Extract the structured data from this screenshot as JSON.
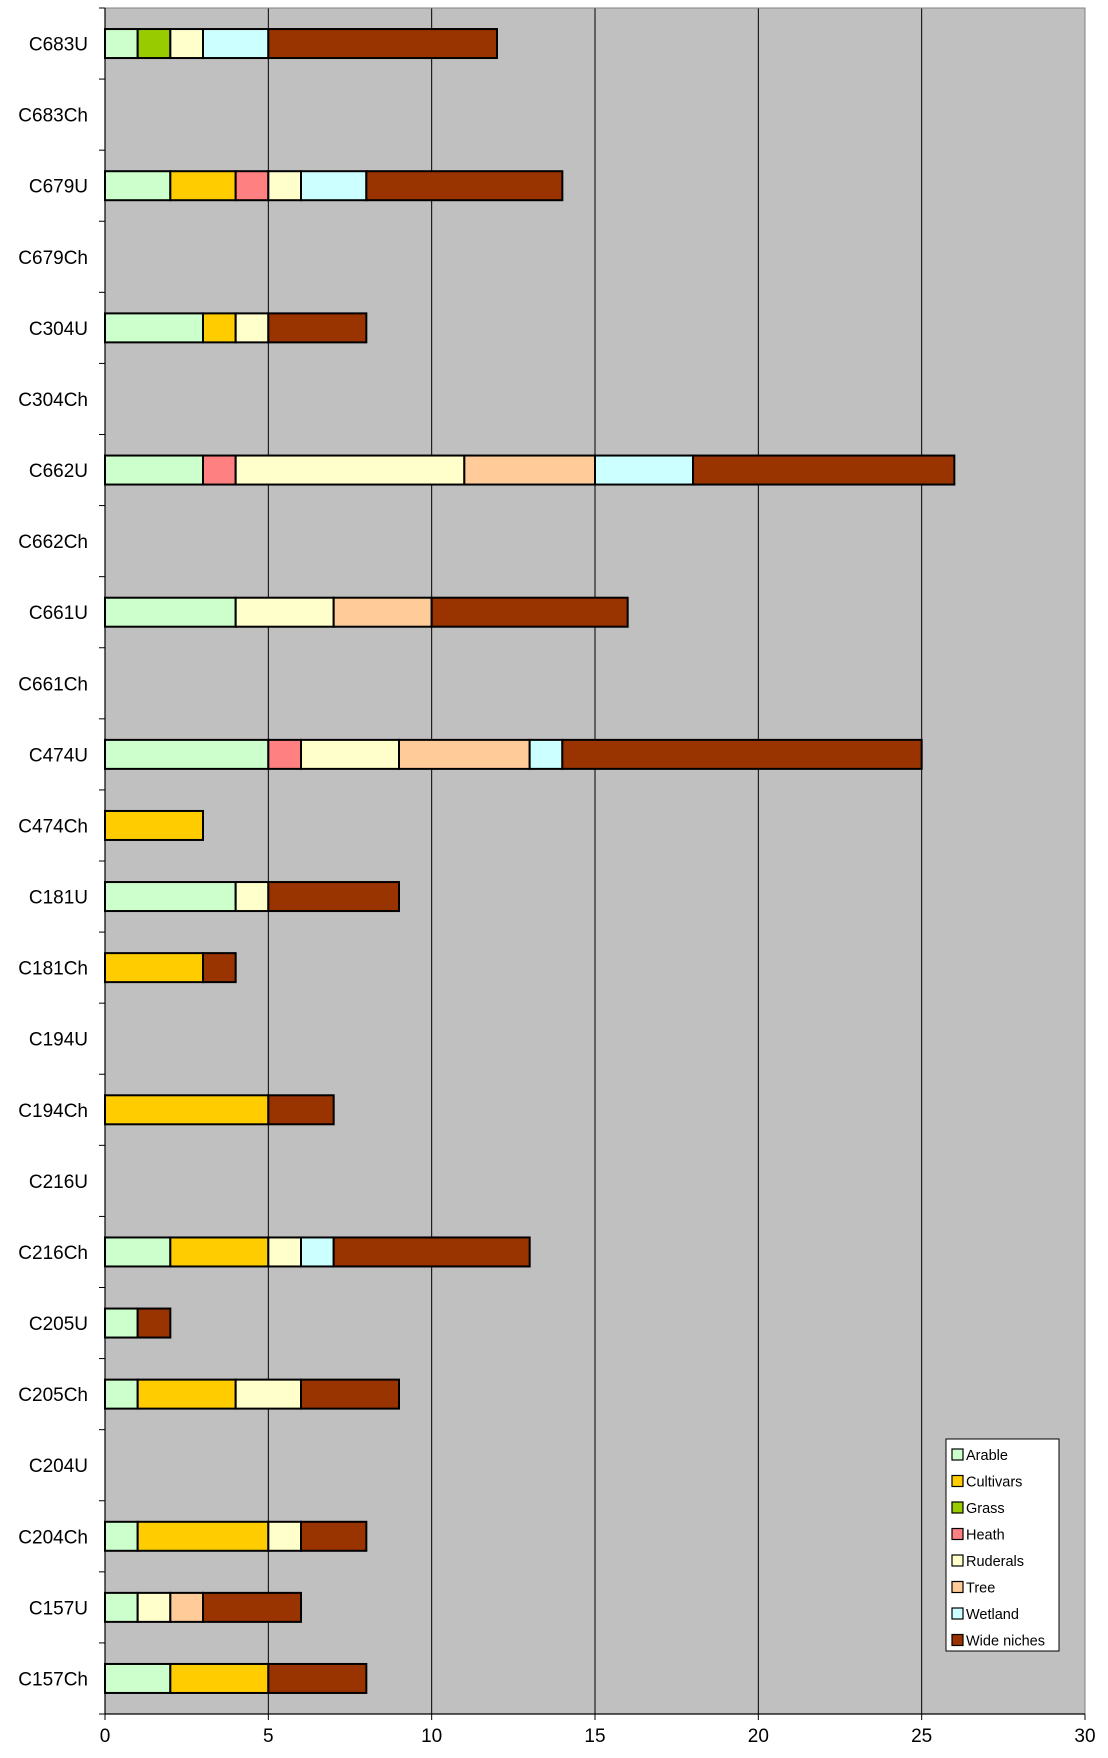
{
  "chart_data": {
    "type": "bar",
    "stacked": true,
    "orientation": "horizontal",
    "title": "",
    "xlabel": "",
    "ylabel": "",
    "xlim": [
      0,
      30
    ],
    "x_ticks": [
      "0",
      "5",
      "10",
      "15",
      "20",
      "25",
      "30"
    ],
    "grid": "vertical",
    "legend_position": "bottom-right",
    "plot_background": "#C0C0C0",
    "categories": [
      "C683U",
      "C683Ch",
      "C679U",
      "C679Ch",
      "C304U",
      "C304Ch",
      "C662U",
      "C662Ch",
      "C661U",
      "C661Ch",
      "C474U",
      "C474Ch",
      "C181U",
      "C181Ch",
      "C194U",
      "C194Ch",
      "C216U",
      "C216Ch",
      "C205U",
      "C205Ch",
      "C204U",
      "C204Ch",
      "C157U",
      "C157Ch"
    ],
    "series": [
      {
        "name": "Arable",
        "color": "#CCFFCC",
        "values": [
          1,
          0,
          2,
          0,
          3,
          0,
          3,
          0,
          4,
          0,
          5,
          0,
          4,
          0,
          0,
          0,
          0,
          2,
          1,
          1,
          0,
          1,
          1,
          2
        ]
      },
      {
        "name": "Cultivars",
        "color": "#FFCC00",
        "values": [
          0,
          0,
          2,
          0,
          1,
          0,
          0,
          0,
          0,
          0,
          0,
          3,
          0,
          3,
          0,
          5,
          0,
          3,
          0,
          3,
          0,
          4,
          0,
          3
        ]
      },
      {
        "name": "Grass",
        "color": "#99CC00",
        "values": [
          1,
          0,
          0,
          0,
          0,
          0,
          0,
          0,
          0,
          0,
          0,
          0,
          0,
          0,
          0,
          0,
          0,
          0,
          0,
          0,
          0,
          0,
          0,
          0
        ]
      },
      {
        "name": "Heath",
        "color": "#FF8080",
        "values": [
          0,
          0,
          1,
          0,
          0,
          0,
          1,
          0,
          0,
          0,
          1,
          0,
          0,
          0,
          0,
          0,
          0,
          0,
          0,
          0,
          0,
          0,
          0,
          0
        ]
      },
      {
        "name": "Ruderals",
        "color": "#FFFFCC",
        "values": [
          1,
          0,
          1,
          0,
          1,
          0,
          7,
          0,
          3,
          0,
          3,
          0,
          1,
          0,
          0,
          0,
          0,
          1,
          0,
          2,
          0,
          1,
          1,
          0
        ]
      },
      {
        "name": "Tree",
        "color": "#FFCC99",
        "values": [
          0,
          0,
          0,
          0,
          0,
          0,
          4,
          0,
          3,
          0,
          4,
          0,
          0,
          0,
          0,
          0,
          0,
          0,
          0,
          0,
          0,
          0,
          1,
          0
        ]
      },
      {
        "name": "Wetland",
        "color": "#CCFFFF",
        "values": [
          2,
          0,
          2,
          0,
          0,
          0,
          3,
          0,
          0,
          0,
          1,
          0,
          0,
          0,
          0,
          0,
          0,
          1,
          0,
          0,
          0,
          0,
          0,
          0
        ]
      },
      {
        "name": "Wide niches",
        "color": "#993300",
        "values": [
          7,
          0,
          6,
          0,
          3,
          0,
          8,
          0,
          6,
          0,
          11,
          0,
          4,
          1,
          0,
          2,
          0,
          6,
          1,
          3,
          0,
          2,
          3,
          3
        ]
      }
    ]
  }
}
